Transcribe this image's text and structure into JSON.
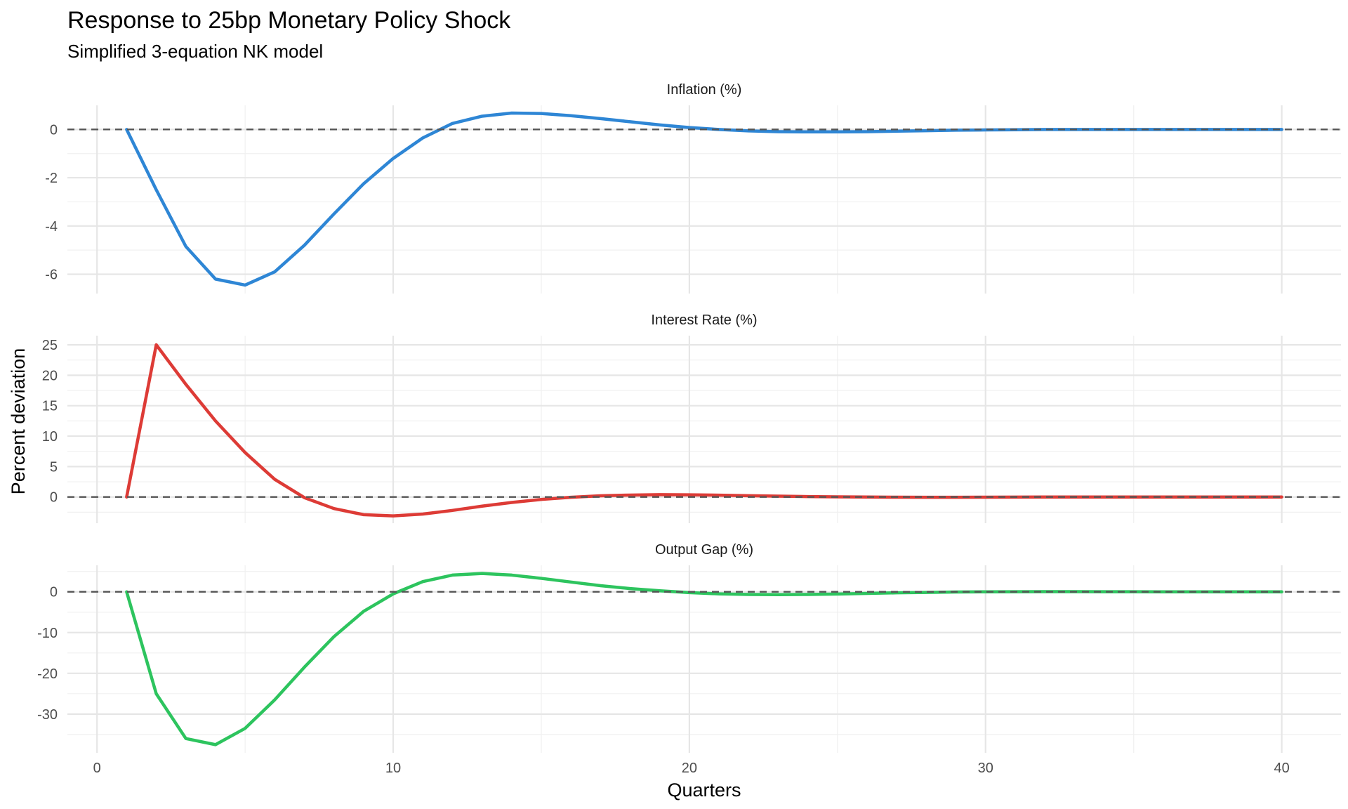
{
  "chart_data": {
    "type": "line",
    "title": "Response to 25bp Monetary Policy Shock",
    "subtitle": "Simplified 3-equation NK model",
    "xlabel": "Quarters",
    "ylabel": "Percent deviation",
    "xlim": [
      -1,
      42
    ],
    "x_ticks": [
      0,
      10,
      20,
      30,
      40
    ],
    "grid": true,
    "reference_line": {
      "y": 0,
      "style": "dashed"
    },
    "x": [
      1,
      2,
      3,
      4,
      5,
      6,
      7,
      8,
      9,
      10,
      11,
      12,
      13,
      14,
      15,
      16,
      17,
      18,
      19,
      20,
      21,
      22,
      23,
      24,
      25,
      26,
      27,
      28,
      29,
      30,
      31,
      32,
      33,
      34,
      35,
      36,
      37,
      38,
      39,
      40
    ],
    "panels": [
      {
        "name": "Inflation (%)",
        "color": "#2E86D5",
        "ylim": [
          -6.8,
          1.0
        ],
        "y_ticks": [
          -6,
          -4,
          -2,
          0
        ],
        "values": [
          0.0,
          -2.5,
          -4.85,
          -6.2,
          -6.45,
          -5.9,
          -4.8,
          -3.5,
          -2.25,
          -1.2,
          -0.35,
          0.25,
          0.55,
          0.68,
          0.66,
          0.57,
          0.45,
          0.32,
          0.19,
          0.08,
          0.0,
          -0.06,
          -0.09,
          -0.1,
          -0.1,
          -0.09,
          -0.07,
          -0.05,
          -0.03,
          -0.02,
          -0.01,
          0.0,
          0.0,
          0.0,
          0.0,
          0.0,
          0.0,
          0.0,
          0.0,
          0.0
        ]
      },
      {
        "name": "Interest Rate (%)",
        "color": "#DD3B36",
        "ylim": [
          -4.3,
          26.5
        ],
        "y_ticks": [
          0,
          5,
          10,
          15,
          20,
          25
        ],
        "values": [
          0.0,
          25.0,
          18.5,
          12.5,
          7.3,
          2.9,
          -0.1,
          -1.9,
          -2.9,
          -3.1,
          -2.8,
          -2.2,
          -1.5,
          -0.9,
          -0.4,
          -0.05,
          0.2,
          0.32,
          0.38,
          0.36,
          0.3,
          0.22,
          0.14,
          0.07,
          0.02,
          -0.01,
          -0.03,
          -0.04,
          -0.04,
          -0.03,
          -0.02,
          -0.01,
          0.0,
          0.0,
          0.0,
          0.0,
          0.0,
          0.0,
          0.0,
          0.0
        ]
      },
      {
        "name": "Output Gap (%)",
        "color": "#2DC45E",
        "ylim": [
          -39.5,
          6.5
        ],
        "y_ticks": [
          -30,
          -20,
          -10,
          0
        ],
        "values": [
          0.0,
          -25.0,
          -36.0,
          -37.5,
          -33.5,
          -26.5,
          -18.5,
          -11.0,
          -4.8,
          -0.5,
          2.5,
          4.1,
          4.5,
          4.1,
          3.3,
          2.4,
          1.5,
          0.8,
          0.25,
          -0.2,
          -0.5,
          -0.65,
          -0.7,
          -0.65,
          -0.55,
          -0.4,
          -0.25,
          -0.15,
          -0.05,
          0.0,
          0.02,
          0.03,
          0.03,
          0.02,
          0.01,
          0.0,
          0.0,
          0.0,
          0.0,
          0.0
        ]
      }
    ]
  }
}
